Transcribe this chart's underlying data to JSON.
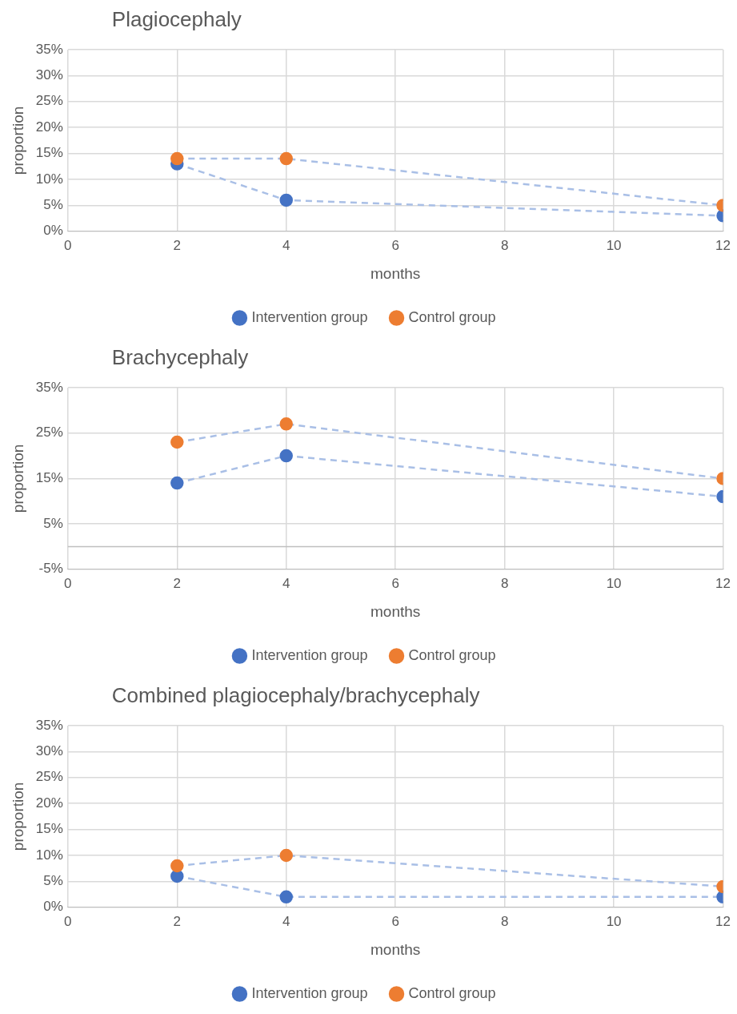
{
  "chart_data": [
    {
      "type": "line",
      "title": "Plagiocephaly",
      "xlabel": "months",
      "ylabel": "proportion",
      "x": [
        2,
        4,
        12
      ],
      "series": [
        {
          "name": "Intervention group",
          "color": "#4472c4",
          "values": [
            13,
            6,
            3
          ]
        },
        {
          "name": "Control group",
          "color": "#ed7d31",
          "values": [
            14,
            14,
            5
          ]
        }
      ],
      "xlim": [
        0,
        12
      ],
      "xticks": [
        0,
        2,
        4,
        6,
        8,
        10,
        12
      ],
      "ylim": [
        0,
        35
      ],
      "yticks": [
        {
          "value": 0,
          "label": "0%"
        },
        {
          "value": 5,
          "label": "5%"
        },
        {
          "value": 10,
          "label": "10%"
        },
        {
          "value": 15,
          "label": "15%"
        },
        {
          "value": 20,
          "label": "20%"
        },
        {
          "value": 25,
          "label": "25%"
        },
        {
          "value": 30,
          "label": "30%"
        },
        {
          "value": 35,
          "label": "35%"
        }
      ],
      "grid": true,
      "legend": "bottom",
      "marker": "circle",
      "line_style": "dashed"
    },
    {
      "type": "line",
      "title": "Brachycephaly",
      "xlabel": "months",
      "ylabel": "proportion",
      "x": [
        2,
        4,
        12
      ],
      "series": [
        {
          "name": "Intervention group",
          "color": "#4472c4",
          "values": [
            14,
            20,
            11
          ]
        },
        {
          "name": "Control group",
          "color": "#ed7d31",
          "values": [
            23,
            27,
            15
          ]
        }
      ],
      "xlim": [
        0,
        12
      ],
      "xticks": [
        0,
        2,
        4,
        6,
        8,
        10,
        12
      ],
      "ylim": [
        -5,
        35
      ],
      "yticks": [
        {
          "value": -5,
          "label": "-5%"
        },
        {
          "value": 5,
          "label": "5%"
        },
        {
          "value": 15,
          "label": "15%"
        },
        {
          "value": 25,
          "label": "25%"
        },
        {
          "value": 35,
          "label": "35%"
        }
      ],
      "grid": true,
      "legend": "bottom",
      "marker": "circle",
      "line_style": "dashed"
    },
    {
      "type": "line",
      "title": "Combined plagiocephaly/brachycephaly",
      "xlabel": "months",
      "ylabel": "proportion",
      "x": [
        2,
        4,
        12
      ],
      "series": [
        {
          "name": "Intervention group",
          "color": "#4472c4",
          "values": [
            6,
            2,
            2
          ]
        },
        {
          "name": "Control group",
          "color": "#ed7d31",
          "values": [
            8,
            10,
            4
          ]
        }
      ],
      "xlim": [
        0,
        12
      ],
      "xticks": [
        0,
        2,
        4,
        6,
        8,
        10,
        12
      ],
      "ylim": [
        0,
        35
      ],
      "yticks": [
        {
          "value": 0,
          "label": "0%"
        },
        {
          "value": 5,
          "label": "5%"
        },
        {
          "value": 10,
          "label": "10%"
        },
        {
          "value": 15,
          "label": "15%"
        },
        {
          "value": 20,
          "label": "20%"
        },
        {
          "value": 25,
          "label": "25%"
        },
        {
          "value": 30,
          "label": "30%"
        },
        {
          "value": 35,
          "label": "35%"
        }
      ],
      "grid": true,
      "legend": "bottom",
      "marker": "circle",
      "line_style": "dashed"
    }
  ]
}
